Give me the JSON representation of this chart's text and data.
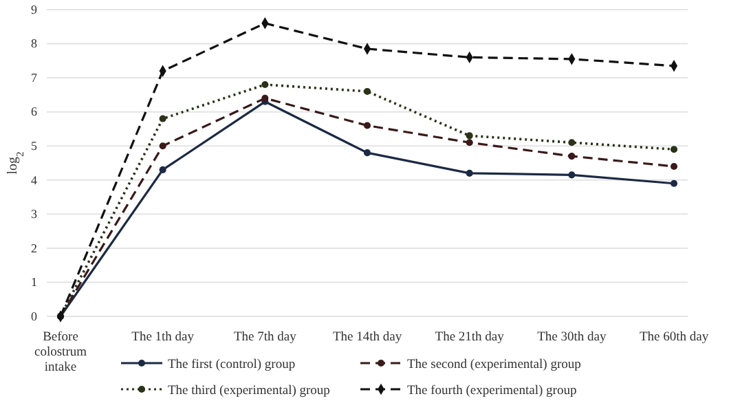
{
  "chart_data": {
    "type": "line",
    "ylabel": "log$_{2}$",
    "categories": [
      "Before colostrum intake",
      "The 1th day",
      "The 7th day",
      "The 14th day",
      "The 21th day",
      "The 30th day",
      "The 60th day"
    ],
    "series": [
      {
        "name": "The first (control) group",
        "color": "#1c2a44",
        "line_style": "solid",
        "marker": "circle",
        "values": [
          0,
          4.3,
          6.3,
          4.8,
          4.2,
          4.15,
          3.9
        ]
      },
      {
        "name": "The second (experimental) group",
        "color": "#3a1a1a",
        "line_style": "dashed",
        "marker": "circle",
        "values": [
          0,
          5.0,
          6.4,
          5.6,
          5.1,
          4.7,
          4.4
        ]
      },
      {
        "name": "The third (experimental) group",
        "color": "#2a3318",
        "line_style": "dotted",
        "marker": "circle",
        "values": [
          0,
          5.8,
          6.8,
          6.6,
          5.3,
          5.1,
          4.9
        ]
      },
      {
        "name": "The fourth (experimental) group",
        "color": "#111111",
        "line_style": "dashed",
        "marker": "diamond",
        "values": [
          0,
          7.2,
          8.6,
          7.85,
          7.6,
          7.55,
          7.35
        ]
      }
    ],
    "ylim": [
      0,
      9
    ],
    "yticks": [
      0,
      1,
      2,
      3,
      4,
      5,
      6,
      7,
      8,
      9
    ],
    "grid": "y",
    "legend": "bottom"
  }
}
